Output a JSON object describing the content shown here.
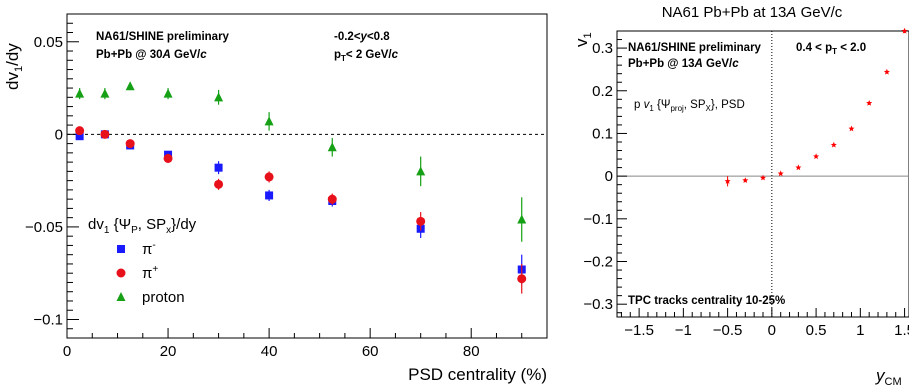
{
  "chart_data": [
    {
      "type": "scatter",
      "xlabel": "PSD centrality (%)",
      "ylabel": "dv1/dy",
      "ylabel_parts": {
        "main": "dv",
        "sub": "1",
        "tail": "/dy"
      },
      "xlim": [
        0,
        95
      ],
      "ylim": [
        -0.11,
        0.065
      ],
      "x_ticks": [
        0,
        20,
        40,
        60,
        80
      ],
      "x_tick_labels": [
        "0",
        "20",
        "40",
        "60",
        "80"
      ],
      "y_ticks": [
        0.05,
        0,
        -0.05,
        -0.1
      ],
      "y_tick_labels": [
        "0.05",
        "0",
        "−0.05",
        "−0.1"
      ],
      "annotations": {
        "left_line1": "NA61/SHINE preliminary",
        "left_line2_pre": "Pb+Pb @ 30",
        "left_line2_ital": "A",
        "left_line2_post": " GeV/",
        "left_line2_c": "c",
        "right_line1_pre": "-0.2<",
        "right_line1_ital": "y",
        "right_line1_post": "<0.8",
        "right_line2_pre": "p",
        "right_line2_sub": "T",
        "right_line2_post": "< 2 GeV/",
        "right_line2_c": "c"
      },
      "legend": {
        "title_pre": "dv",
        "title_sub1": "1",
        "title_mid": " {Ψ",
        "title_sub2": "P",
        "title_mid2": ", SP",
        "title_sub3": "x",
        "title_post": "}/dy",
        "placement": "lower-left"
      },
      "series": [
        {
          "name": "π⁻",
          "label_base": "π",
          "label_sup": "-",
          "marker": "square",
          "color": "#1a1aff",
          "x": [
            2.5,
            7.5,
            12.5,
            20,
            30,
            40,
            52.5,
            70,
            90
          ],
          "y": [
            -0.001,
            0.0,
            -0.006,
            -0.011,
            -0.018,
            -0.033,
            -0.036,
            -0.051,
            -0.073
          ],
          "err": [
            0.002,
            0.0015,
            0.002,
            0.002,
            0.0035,
            0.003,
            0.003,
            0.005,
            0.008
          ]
        },
        {
          "name": "π⁺",
          "label_base": "π",
          "label_sup": "+",
          "marker": "circle",
          "color": "#e8101a",
          "x": [
            2.5,
            7.5,
            12.5,
            20,
            30,
            40,
            52.5,
            70,
            90
          ],
          "y": [
            0.002,
            0.0,
            -0.005,
            -0.013,
            -0.027,
            -0.023,
            -0.035,
            -0.047,
            -0.078
          ],
          "err": [
            0.002,
            0.0015,
            0.002,
            0.0025,
            0.003,
            0.003,
            0.003,
            0.005,
            0.008
          ]
        },
        {
          "name": "proton",
          "label_base": "proton",
          "label_sup": "",
          "marker": "triangle",
          "color": "#15a015",
          "x": [
            2.5,
            7.5,
            12.5,
            20,
            30,
            40,
            52.5,
            70,
            90
          ],
          "y": [
            0.022,
            0.022,
            0.026,
            0.022,
            0.02,
            0.007,
            -0.007,
            -0.02,
            -0.046
          ],
          "err": [
            0.003,
            0.003,
            0.002,
            0.003,
            0.004,
            0.005,
            0.005,
            0.008,
            0.012
          ]
        }
      ]
    },
    {
      "type": "scatter",
      "title_pre": "NA61 Pb+Pb at 13",
      "title_ital": "A",
      "title_post": " GeV/c",
      "xlabel_main": "y",
      "xlabel_sub": "CM",
      "ylabel_main": "v",
      "ylabel_sub": "1",
      "xlim": [
        -1.75,
        1.55
      ],
      "ylim": [
        -0.33,
        0.34
      ],
      "x_ticks": [
        -1.5,
        -1,
        -0.5,
        0,
        0.5,
        1,
        1.5
      ],
      "x_tick_labels": [
        "−1.5",
        "−1",
        "−0.5",
        "0",
        "0.5",
        "1",
        "1.5"
      ],
      "y_ticks": [
        0.3,
        0.2,
        0.1,
        0,
        -0.1,
        -0.2,
        -0.3
      ],
      "y_tick_labels": [
        "0.3",
        "0.2",
        "0.1",
        "0",
        "−0.1",
        "−0.2",
        "−0.3"
      ],
      "annotations": {
        "line1": "NA61/SHINE preliminary",
        "line2_pre": "Pb+Pb @ 13",
        "line2_ital": "A",
        "line2_post": " GeV/",
        "line2_c": "c",
        "pt_pre": "0.4 < p",
        "pt_sub": "T",
        "pt_post": " < 2.0",
        "method_pre": "p  ",
        "method_v": "v",
        "method_sub1": "1",
        "method_mid": " {Ψ",
        "method_sub2": "proj",
        "method_mid2": ", SP",
        "method_sub3": "X",
        "method_post": "}, PSD",
        "bottom": "TPC tracks centrality 10-25%"
      },
      "series": [
        {
          "name": "p v1 {Ψproj, SPX}, PSD",
          "marker": "star",
          "color": "#ff0000",
          "x": [
            -0.5,
            -0.3,
            -0.1,
            0.1,
            0.3,
            0.5,
            0.7,
            0.9,
            1.1,
            1.3,
            1.5
          ],
          "y": [
            -0.012,
            -0.01,
            -0.004,
            0.006,
            0.02,
            0.046,
            0.073,
            0.111,
            0.171,
            0.244,
            0.34
          ],
          "err": [
            0.012,
            0.004,
            0.002,
            0.002,
            0.002,
            0.002,
            0.003,
            0.003,
            0.004,
            0.004,
            0.005
          ]
        }
      ]
    }
  ]
}
